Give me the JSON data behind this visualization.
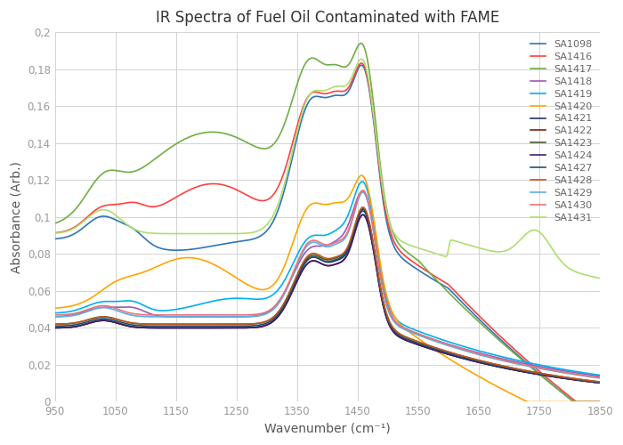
{
  "title": "IR Spectra of Fuel Oil Contaminated with FAME",
  "xlabel": "Wavenumber (cm⁻¹)",
  "ylabel": "Absorbance (Arb.)",
  "xlim": [
    950,
    1850
  ],
  "ylim": [
    0,
    0.2
  ],
  "xticks": [
    950,
    1050,
    1150,
    1250,
    1350,
    1450,
    1550,
    1650,
    1750,
    1850
  ],
  "yticks": [
    0,
    0.02,
    0.04,
    0.06,
    0.08,
    0.1,
    0.12,
    0.14,
    0.16,
    0.18,
    0.2
  ],
  "series": [
    {
      "label": "SA1098",
      "color": "#2E75B6",
      "group": "normal_b"
    },
    {
      "label": "SA1416",
      "color": "#FF4040",
      "group": "normal_r"
    },
    {
      "label": "SA1417",
      "color": "#70AD47",
      "group": "high_g"
    },
    {
      "label": "SA1418",
      "color": "#9B59B6",
      "group": "low_pur"
    },
    {
      "label": "SA1419",
      "color": "#00B0F0",
      "group": "low_cyan"
    },
    {
      "label": "SA1420",
      "color": "#FFA500",
      "group": "outlier_o"
    },
    {
      "label": "SA1421",
      "color": "#1F3864",
      "group": "low_dnb"
    },
    {
      "label": "SA1422",
      "color": "#7B1C1C",
      "group": "low_dr"
    },
    {
      "label": "SA1423",
      "color": "#4D5A27",
      "group": "low_dg"
    },
    {
      "label": "SA1424",
      "color": "#3B1F6B",
      "group": "low_dp"
    },
    {
      "label": "SA1427",
      "color": "#1A5276",
      "group": "low_dt"
    },
    {
      "label": "SA1428",
      "color": "#C0561A",
      "group": "low_do"
    },
    {
      "label": "SA1429",
      "color": "#5DADE2",
      "group": "low_lb"
    },
    {
      "label": "SA1430",
      "color": "#E8747C",
      "group": "low_lp"
    },
    {
      "label": "SA1431",
      "color": "#ADDF6F",
      "group": "high2_lg"
    }
  ],
  "background_color": "#FFFFFF",
  "grid_color": "#CCCCCC"
}
